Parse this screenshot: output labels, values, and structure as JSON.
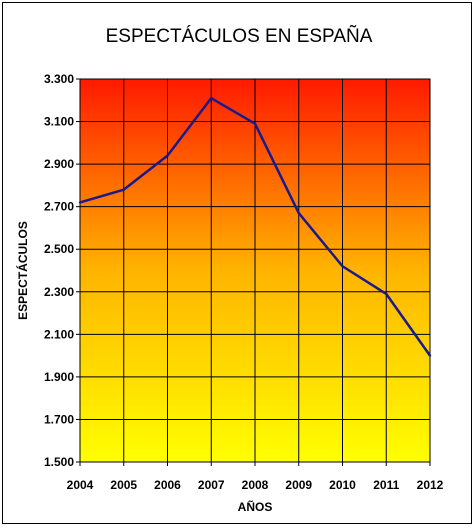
{
  "chart_data": {
    "type": "line",
    "title": "ESPECTÁCULOS EN ESPAÑA",
    "xlabel": "AÑOS",
    "ylabel": "ESPECTÁCULOS",
    "categories": [
      "2004",
      "2005",
      "2006",
      "2007",
      "2008",
      "2009",
      "2010",
      "2011",
      "2012"
    ],
    "series": [
      {
        "values": [
          2720,
          2780,
          2940,
          3210,
          3090,
          2670,
          2420,
          2290,
          2000
        ]
      }
    ],
    "ylim": [
      1500,
      3300
    ],
    "yticks": [
      1500,
      1700,
      1900,
      2100,
      2300,
      2500,
      2700,
      2900,
      3100,
      3300
    ],
    "ytick_labels": [
      "1.500",
      "1.700",
      "1.900",
      "2.100",
      "2.300",
      "2.500",
      "2.700",
      "2.900",
      "3.100",
      "3.300"
    ],
    "grid": true,
    "legend": "none",
    "colors": {
      "line": "#1a1a8c",
      "gradient_top": "#ff1a00",
      "gradient_mid": "#ffb400",
      "gradient_bottom": "#ffff00",
      "grid": "#000000"
    }
  }
}
